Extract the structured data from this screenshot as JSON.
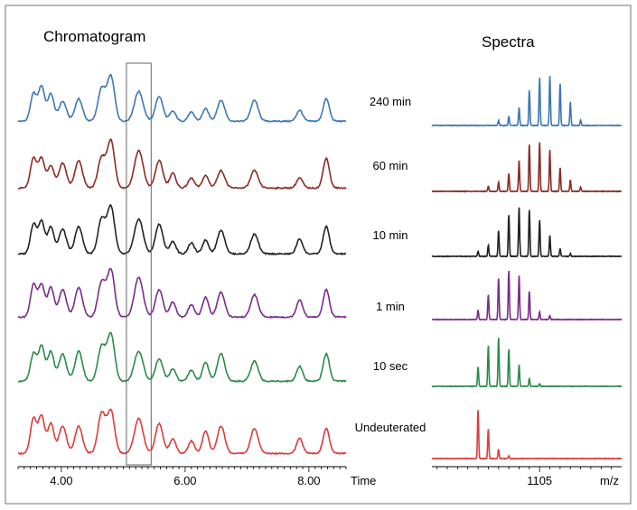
{
  "chart_data": [
    {
      "type": "line",
      "title": "Chromatogram",
      "xlabel": "Time",
      "xlim": [
        3.3,
        8.6
      ],
      "x_tick_labels": [
        "4.00",
        "6.00",
        "8.00"
      ],
      "x_ticks": [
        4.0,
        6.0,
        8.0
      ],
      "highlight_window": [
        5.05,
        5.45
      ],
      "peaks": [
        {
          "rt": 3.55,
          "w": 0.05
        },
        {
          "rt": 3.68,
          "w": 0.05
        },
        {
          "rt": 3.83,
          "w": 0.05
        },
        {
          "rt": 4.02,
          "w": 0.06
        },
        {
          "rt": 4.28,
          "w": 0.06
        },
        {
          "rt": 4.65,
          "w": 0.06
        },
        {
          "rt": 4.8,
          "w": 0.06
        },
        {
          "rt": 5.25,
          "w": 0.07
        },
        {
          "rt": 5.58,
          "w": 0.06
        },
        {
          "rt": 5.8,
          "w": 0.05
        },
        {
          "rt": 6.1,
          "w": 0.05
        },
        {
          "rt": 6.33,
          "w": 0.05
        },
        {
          "rt": 6.58,
          "w": 0.06
        },
        {
          "rt": 7.12,
          "w": 0.06
        },
        {
          "rt": 7.85,
          "w": 0.05
        },
        {
          "rt": 8.28,
          "w": 0.05
        }
      ],
      "series": [
        {
          "name": "240 min",
          "color": "#3c77b6",
          "heights": [
            0.55,
            0.7,
            0.55,
            0.4,
            0.45,
            0.65,
            0.9,
            0.6,
            0.5,
            0.2,
            0.18,
            0.25,
            0.42,
            0.42,
            0.22,
            0.45
          ]
        },
        {
          "name": "60 min",
          "color": "#8b2b24",
          "heights": [
            0.6,
            0.6,
            0.45,
            0.5,
            0.55,
            0.6,
            0.95,
            0.75,
            0.55,
            0.3,
            0.2,
            0.25,
            0.35,
            0.35,
            0.2,
            0.6
          ]
        },
        {
          "name": "10 min",
          "color": "#222222",
          "heights": [
            0.6,
            0.65,
            0.55,
            0.5,
            0.55,
            0.7,
            0.95,
            0.7,
            0.6,
            0.25,
            0.22,
            0.28,
            0.48,
            0.4,
            0.3,
            0.55
          ]
        },
        {
          "name": "1 min",
          "color": "#7a2b8a",
          "heights": [
            0.65,
            0.65,
            0.6,
            0.55,
            0.6,
            0.7,
            0.95,
            0.8,
            0.55,
            0.3,
            0.25,
            0.4,
            0.5,
            0.45,
            0.35,
            0.55
          ]
        },
        {
          "name": "10 sec",
          "color": "#2b8a4a",
          "heights": [
            0.55,
            0.7,
            0.6,
            0.55,
            0.6,
            0.7,
            0.95,
            0.6,
            0.45,
            0.25,
            0.22,
            0.38,
            0.55,
            0.4,
            0.3,
            0.55
          ]
        },
        {
          "name": "Undeuterated",
          "color": "#e03a3a",
          "heights": [
            0.7,
            0.75,
            0.6,
            0.55,
            0.55,
            0.8,
            0.85,
            0.7,
            0.6,
            0.3,
            0.25,
            0.45,
            0.55,
            0.5,
            0.3,
            0.5
          ]
        }
      ]
    },
    {
      "type": "bar",
      "title": "Spectra",
      "xlabel": "m/z",
      "x_tick_label": "1105",
      "x_tick_value": 1105,
      "x_positions": [
        1097,
        1098,
        1099,
        1100,
        1101,
        1102,
        1103,
        1104,
        1105,
        1106,
        1107,
        1108,
        1109
      ],
      "xlim": [
        1094.5,
        1113
      ],
      "series": [
        {
          "name": "240 min",
          "color": "#3c77b6",
          "intensities": [
            0,
            0,
            0,
            0,
            0.1,
            0.18,
            0.35,
            0.68,
            0.92,
            0.95,
            0.8,
            0.45,
            0.1
          ]
        },
        {
          "name": "60 min",
          "color": "#8b2b24",
          "intensities": [
            0,
            0,
            0,
            0.1,
            0.18,
            0.35,
            0.6,
            0.9,
            0.95,
            0.8,
            0.45,
            0.22,
            0.08
          ]
        },
        {
          "name": "10 min",
          "color": "#222222",
          "intensities": [
            0,
            0,
            0.1,
            0.22,
            0.5,
            0.8,
            0.95,
            0.9,
            0.7,
            0.4,
            0.15,
            0.05,
            0
          ]
        },
        {
          "name": "1 min",
          "color": "#7a2b8a",
          "intensities": [
            0,
            0,
            0.18,
            0.48,
            0.8,
            0.95,
            0.85,
            0.55,
            0.15,
            0.08,
            0,
            0,
            0
          ]
        },
        {
          "name": "10 sec",
          "color": "#2b8a4a",
          "intensities": [
            0,
            0,
            0.38,
            0.8,
            0.95,
            0.72,
            0.42,
            0.15,
            0.05,
            0,
            0,
            0,
            0
          ]
        },
        {
          "name": "Undeuterated",
          "color": "#e03a3a",
          "intensities": [
            0,
            0,
            0.95,
            0.58,
            0.18,
            0.05,
            0,
            0,
            0,
            0,
            0,
            0,
            0
          ]
        }
      ]
    }
  ]
}
